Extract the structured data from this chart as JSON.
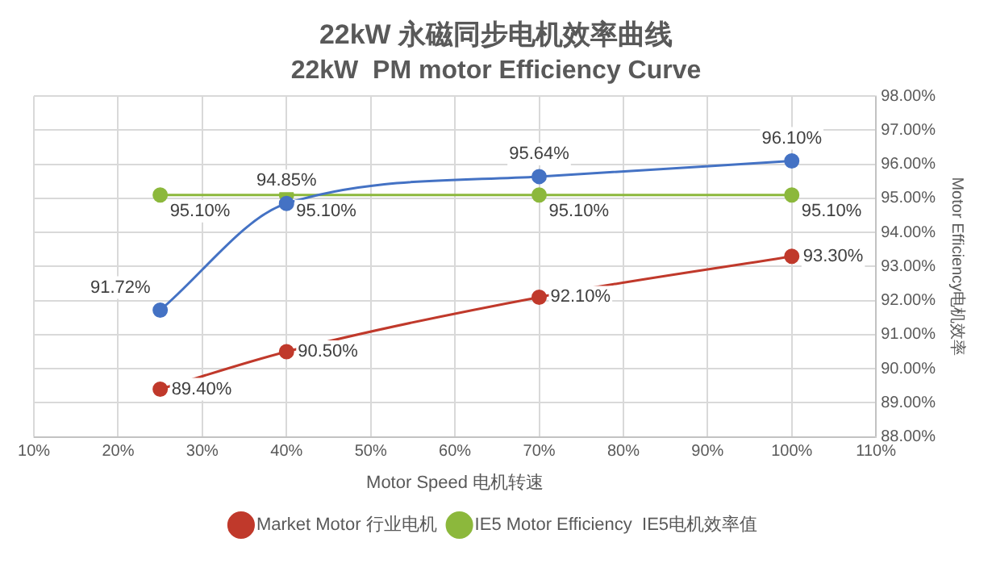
{
  "chart_data": {
    "type": "line",
    "title": "22kW 永磁同步电机效率曲线",
    "subtitle": "22kW  PM motor Efficiency Curve",
    "xlabel": "Motor Speed 电机转速",
    "ylabel": "Motor Efficiency电机效率",
    "x": [
      25,
      40,
      70,
      100
    ],
    "series": [
      {
        "color": "#4472c4",
        "values": [
          91.72,
          94.85,
          95.64,
          96.1
        ],
        "value_labels": [
          "91.72%",
          "94.85%",
          "95.64%",
          "96.10%"
        ]
      },
      {
        "name": "Market Motor 行业电机",
        "color": "#c0392b",
        "values": [
          89.4,
          90.5,
          92.1,
          93.3
        ],
        "value_labels": [
          "89.40%",
          "90.50%",
          "92.10%",
          "93.30%"
        ]
      },
      {
        "name": "IE5 Motor Efficiency  IE5电机效率值",
        "color": "#8cb83c",
        "values": [
          95.1,
          95.1,
          95.1,
          95.1
        ],
        "value_labels": [
          "95.10%",
          "95.10%",
          "95.10%",
          "95.10%"
        ]
      }
    ],
    "xlim": [
      10,
      110
    ],
    "xticks": [
      {
        "value": 10,
        "label": "10%"
      },
      {
        "value": 20,
        "label": "20%"
      },
      {
        "value": 30,
        "label": "30%"
      },
      {
        "value": 40,
        "label": "40%"
      },
      {
        "value": 50,
        "label": "50%"
      },
      {
        "value": 60,
        "label": "60%"
      },
      {
        "value": 70,
        "label": "70%"
      },
      {
        "value": 80,
        "label": "80%"
      },
      {
        "value": 90,
        "label": "90%"
      },
      {
        "value": 100,
        "label": "100%"
      },
      {
        "value": 110,
        "label": "110%"
      }
    ],
    "ylim": [
      88,
      98
    ],
    "yticks": [
      {
        "value": 88,
        "label": "88.00%"
      },
      {
        "value": 89,
        "label": "89.00%"
      },
      {
        "value": 90,
        "label": "90.00%"
      },
      {
        "value": 91,
        "label": "91.00%"
      },
      {
        "value": 92,
        "label": "92.00%"
      },
      {
        "value": 93,
        "label": "93.00%"
      },
      {
        "value": 94,
        "label": "94.00%"
      },
      {
        "value": 95,
        "label": "95.00%"
      },
      {
        "value": 96,
        "label": "96.00%"
      },
      {
        "value": 97,
        "label": "97.00%"
      },
      {
        "value": 98,
        "label": "98.00%"
      }
    ],
    "grid": true,
    "legend": "bottom",
    "marker": "circle",
    "line_style": "solid"
  }
}
